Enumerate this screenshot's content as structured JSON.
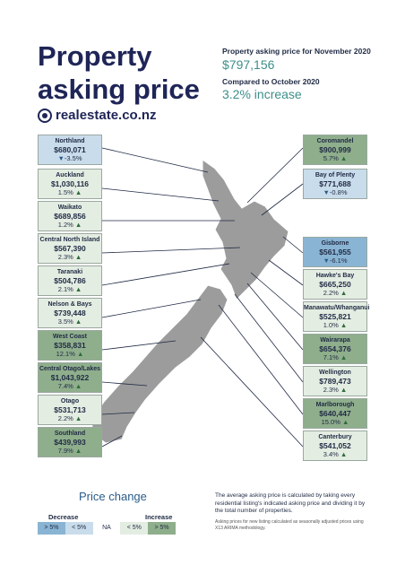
{
  "title_line1": "Property",
  "title_line2": "asking price",
  "brand": "realestate.co.nz",
  "national": {
    "label": "Property asking price for November 2020",
    "price": "$797,156",
    "compare_label": "Compared to October 2020",
    "change": "3.2% increase"
  },
  "regions_left": [
    {
      "name": "Northland",
      "price": "$680,071",
      "change": "-3.5%",
      "dir": "down"
    },
    {
      "name": "Auckland",
      "price": "$1,030,116",
      "change": "1.5%",
      "dir": "up"
    },
    {
      "name": "Waikato",
      "price": "$689,856",
      "change": "1.2%",
      "dir": "up"
    },
    {
      "name": "Central North Island",
      "price": "$567,390",
      "change": "2.3%",
      "dir": "up"
    },
    {
      "name": "Taranaki",
      "price": "$504,786",
      "change": "2.1%",
      "dir": "up"
    },
    {
      "name": "Nelson & Bays",
      "price": "$739,448",
      "change": "3.5%",
      "dir": "up"
    },
    {
      "name": "West Coast",
      "price": "$358,831",
      "change": "12.1%",
      "dir": "up"
    },
    {
      "name": "Central Otago/Lakes",
      "price": "$1,043,922",
      "change": "7.4%",
      "dir": "up"
    },
    {
      "name": "Otago",
      "price": "$531,713",
      "change": "2.2%",
      "dir": "up"
    },
    {
      "name": "Southland",
      "price": "$439,993",
      "change": "7.9%",
      "dir": "up"
    }
  ],
  "regions_right": [
    {
      "name": "Coromandel",
      "price": "$900,999",
      "change": "5.7%",
      "dir": "up"
    },
    {
      "name": "Bay of Plenty",
      "price": "$771,688",
      "change": "-0.8%",
      "dir": "down"
    },
    {
      "name": "Gisborne",
      "price": "$561,955",
      "change": "-6.1%",
      "dir": "down"
    },
    {
      "name": "Hawke's Bay",
      "price": "$665,250",
      "change": "2.2%",
      "dir": "up"
    },
    {
      "name": "Manawatu/Whanganui",
      "price": "$525,821",
      "change": "1.0%",
      "dir": "up"
    },
    {
      "name": "Wairarapa",
      "price": "$654,376",
      "change": "7.1%",
      "dir": "up"
    },
    {
      "name": "Wellington",
      "price": "$789,473",
      "change": "2.3%",
      "dir": "up"
    },
    {
      "name": "Marlborough",
      "price": "$640,447",
      "change": "15.0%",
      "dir": "up"
    },
    {
      "name": "Canterbury",
      "price": "$541,052",
      "change": "3.4%",
      "dir": "up"
    }
  ],
  "legend": {
    "title": "Price change",
    "decrease": "Decrease",
    "increase": "Increase",
    "items": [
      "> 5%",
      "< 5%",
      "NA",
      "< 5%",
      "> 5%"
    ]
  },
  "footnote": "The average asking price is calculated by taking every residential listing's indicated asking price and dividing it by the total number of properties.",
  "footnote_small": "Asking prices for new listing calculated as seasonally adjusted prices using X13 ARIMA methodology."
}
